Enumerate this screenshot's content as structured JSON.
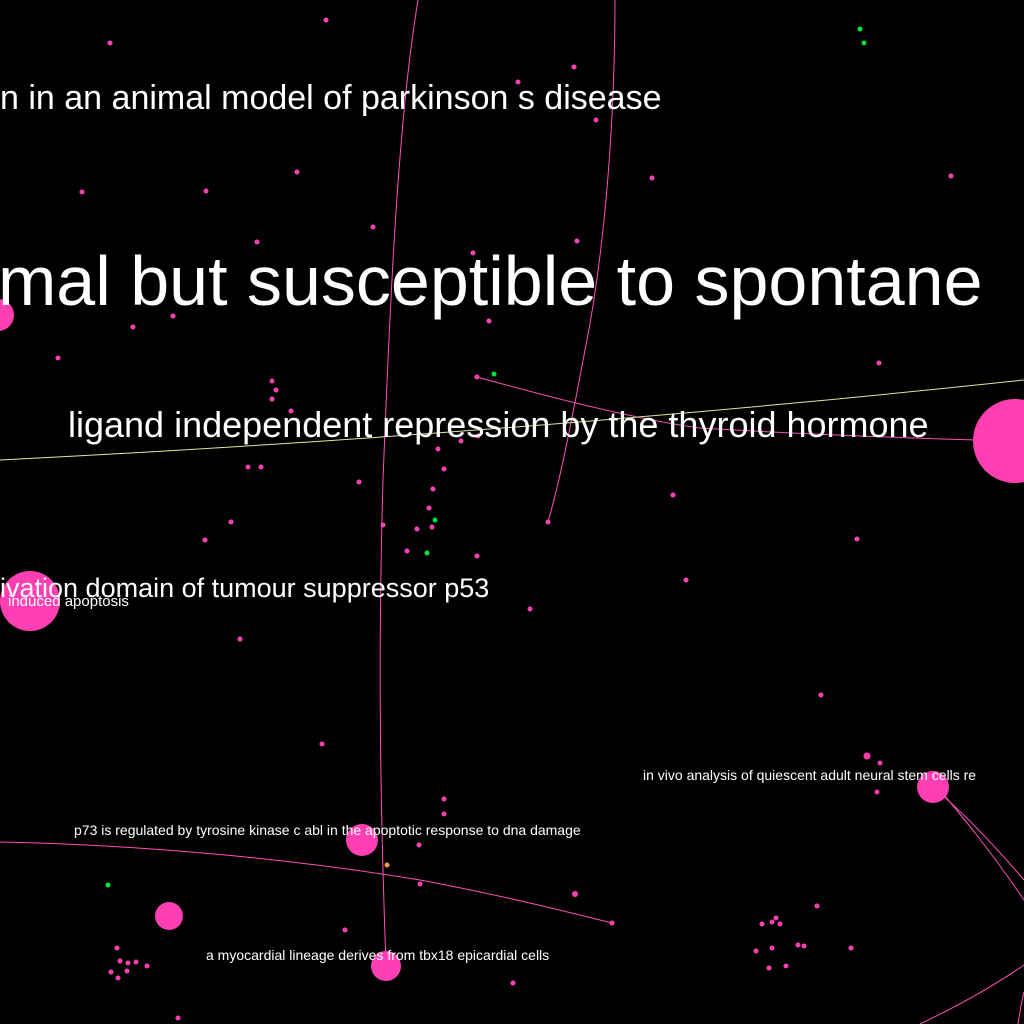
{
  "colors": {
    "background": "#000000",
    "node_primary": "#ff3fb2",
    "node_secondary": "#00e632",
    "node_tertiary": "#e8a040",
    "edge_primary": "#ff4fb8",
    "edge_secondary": "#d8e8a0",
    "label": "#ffffff"
  },
  "labels": {
    "title_large": "mal but susceptible to spontane",
    "thyroid": "ligand independent repression by the thyroid hormone",
    "parkinson": "n in an animal model of parkinson s disease",
    "p53": "ivation domain of tumour suppressor p53",
    "apoptosis": "induced apoptosis",
    "stem_cells": "in vivo analysis of quiescent adult neural stem cells re",
    "p73": "p73 is regulated by tyrosine kinase c abl in the apoptotic response to dna damage",
    "myocardial": "a myocardial lineage derives from tbx18 epicardial cells"
  }
}
